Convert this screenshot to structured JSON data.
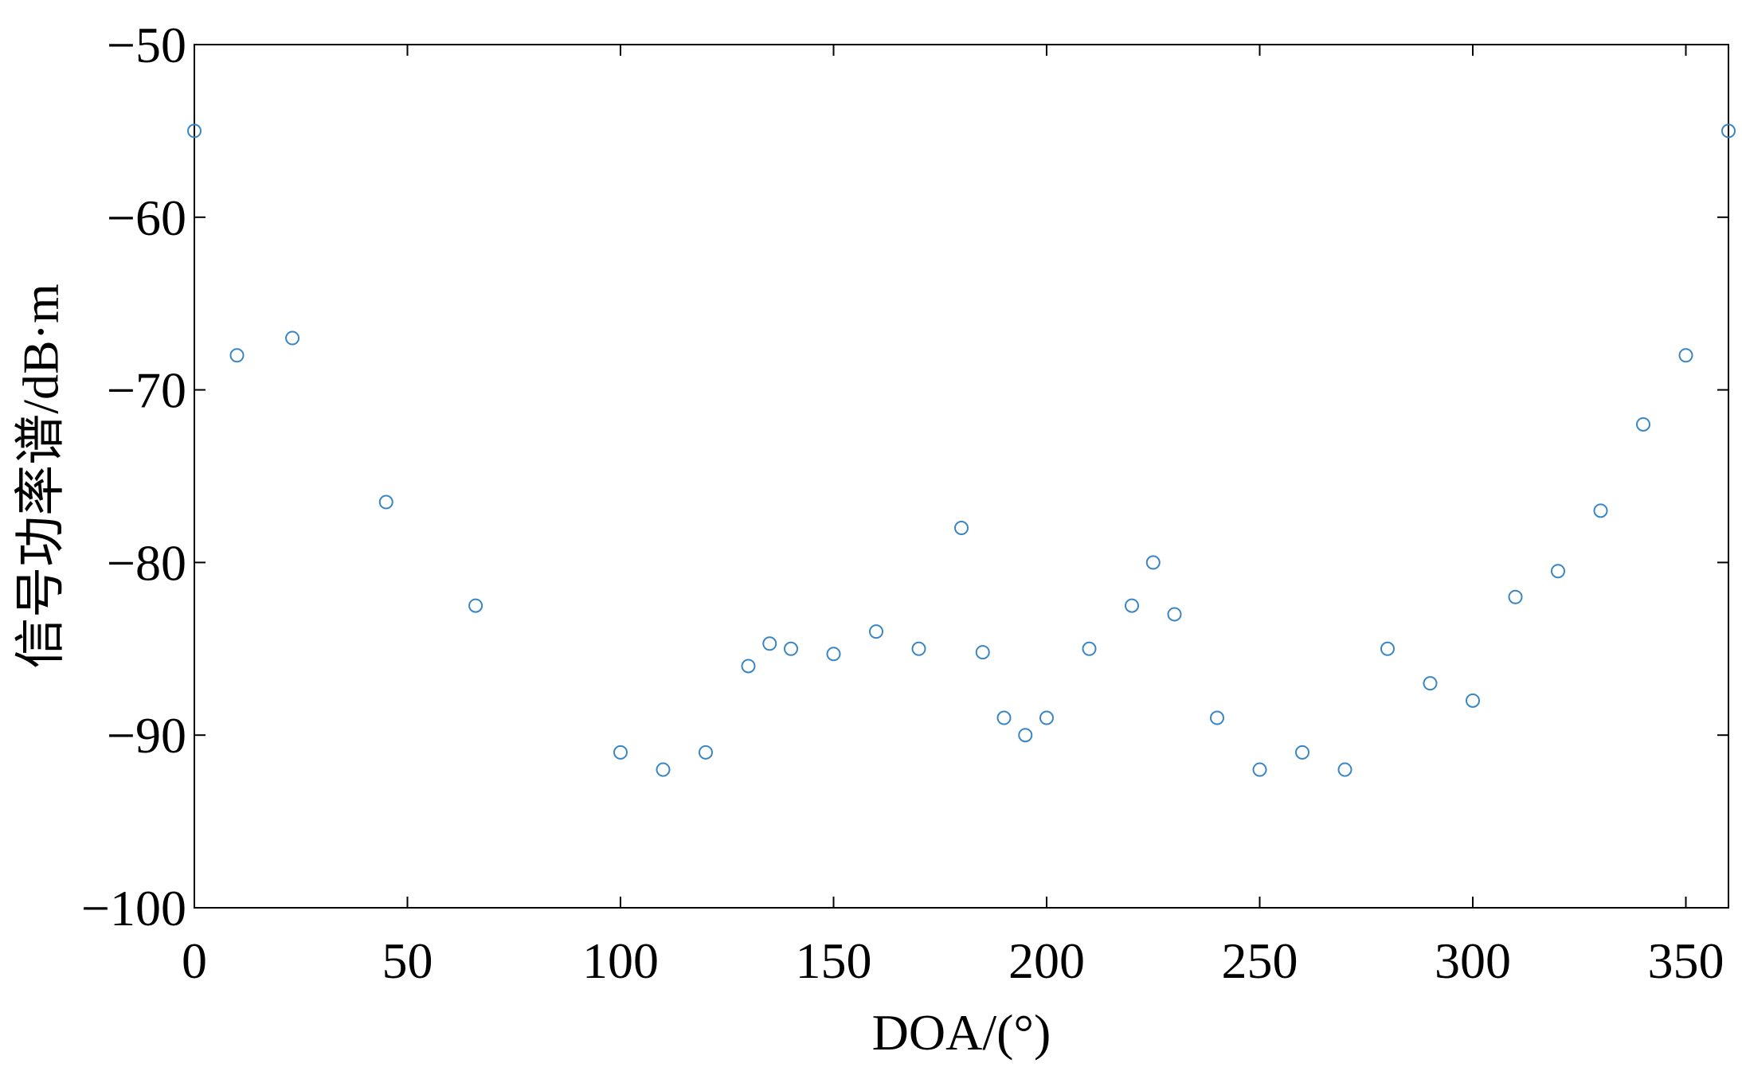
{
  "chart_data": {
    "type": "scatter",
    "x_label": "DOA/(°)",
    "y_label": "信号功率谱/dB·m",
    "x": [
      0,
      10,
      23,
      45,
      66,
      100,
      110,
      120,
      130,
      135,
      140,
      150,
      160,
      170,
      180,
      185,
      190,
      195,
      200,
      210,
      220,
      225,
      230,
      240,
      250,
      260,
      270,
      280,
      290,
      300,
      310,
      320,
      330,
      340,
      350,
      360
    ],
    "values": [
      -55,
      -68,
      -67,
      -76.5,
      -82.5,
      -91,
      -92,
      -91,
      -86,
      -84.7,
      -85,
      -85.3,
      -84,
      -85,
      -78,
      -85.2,
      -89,
      -90,
      -89,
      -85,
      -82.5,
      -80,
      -83,
      -89,
      -92,
      -91,
      -92,
      -85,
      -87,
      -88,
      -82,
      -80.5,
      -77,
      -72,
      -68,
      -55
    ],
    "color": "#3a86c4",
    "xlim": [
      0,
      360
    ],
    "xticks": [
      0,
      50,
      100,
      150,
      200,
      250,
      300,
      350
    ],
    "ylim": [
      -100,
      -50
    ],
    "yticks": [
      {
        "value": -100,
        "label": "−100"
      },
      {
        "value": -90,
        "label": "−90"
      },
      {
        "value": -80,
        "label": "−80"
      },
      {
        "value": -70,
        "label": "−70"
      },
      {
        "value": -60,
        "label": "−60"
      },
      {
        "value": -50,
        "label": "−50"
      }
    ],
    "grid": false
  }
}
